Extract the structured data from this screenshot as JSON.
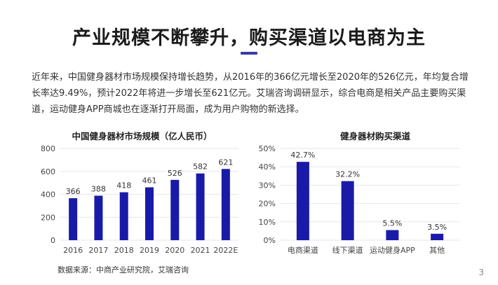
{
  "slide": {
    "title": "产业规模不断攀升，购买渠道以电商为主",
    "intro": "近年来，中国健身器材市场规模保持增长趋势，从2016年的366亿元增长至2020年的526亿元，年均复合增长率达9.49%，预计2022年将进一步增长至621亿元。艾瑞咨询调研显示，综合电商是相关产品主要购买渠道，运动健身APP商城也在逐渐打开局面，成为用户购物的新选择。",
    "source": "数据来源：中商产业研究院，艾瑞咨询",
    "page_number": "3"
  },
  "colors": {
    "bar": "#1a1aa8",
    "title_accent": "#3a3aa8",
    "grid": "#e6e6e6"
  },
  "chart_data": [
    {
      "type": "bar",
      "title": "中国健身器材市场规模（亿人民币）",
      "categories": [
        "2016",
        "2017",
        "2018",
        "2019",
        "2020",
        "2021",
        "2022E"
      ],
      "values": [
        366,
        388,
        418,
        461,
        526,
        582,
        621
      ],
      "data_labels": [
        "366",
        "388",
        "418",
        "461",
        "526",
        "582",
        "621"
      ],
      "ylim": [
        0,
        800
      ],
      "yticks": [
        0,
        200,
        400,
        600,
        800
      ],
      "ytick_labels": [
        "0",
        "200",
        "400",
        "600",
        "800"
      ],
      "grid": true,
      "xlabel": "",
      "ylabel": ""
    },
    {
      "type": "bar",
      "title": "健身器材购买渠道",
      "categories": [
        "电商渠道",
        "线下渠道",
        "运动健身APP",
        "其他"
      ],
      "values": [
        42.7,
        32.2,
        5.5,
        3.5
      ],
      "data_labels": [
        "42.7%",
        "32.2%",
        "5.5%",
        "3.5%"
      ],
      "ylim": [
        0,
        50
      ],
      "yticks": [
        0,
        10,
        20,
        30,
        40,
        50
      ],
      "ytick_labels": [
        "0%",
        "10%",
        "20%",
        "30%",
        "40%",
        "50%"
      ],
      "grid": true,
      "xlabel": "",
      "ylabel": ""
    }
  ]
}
